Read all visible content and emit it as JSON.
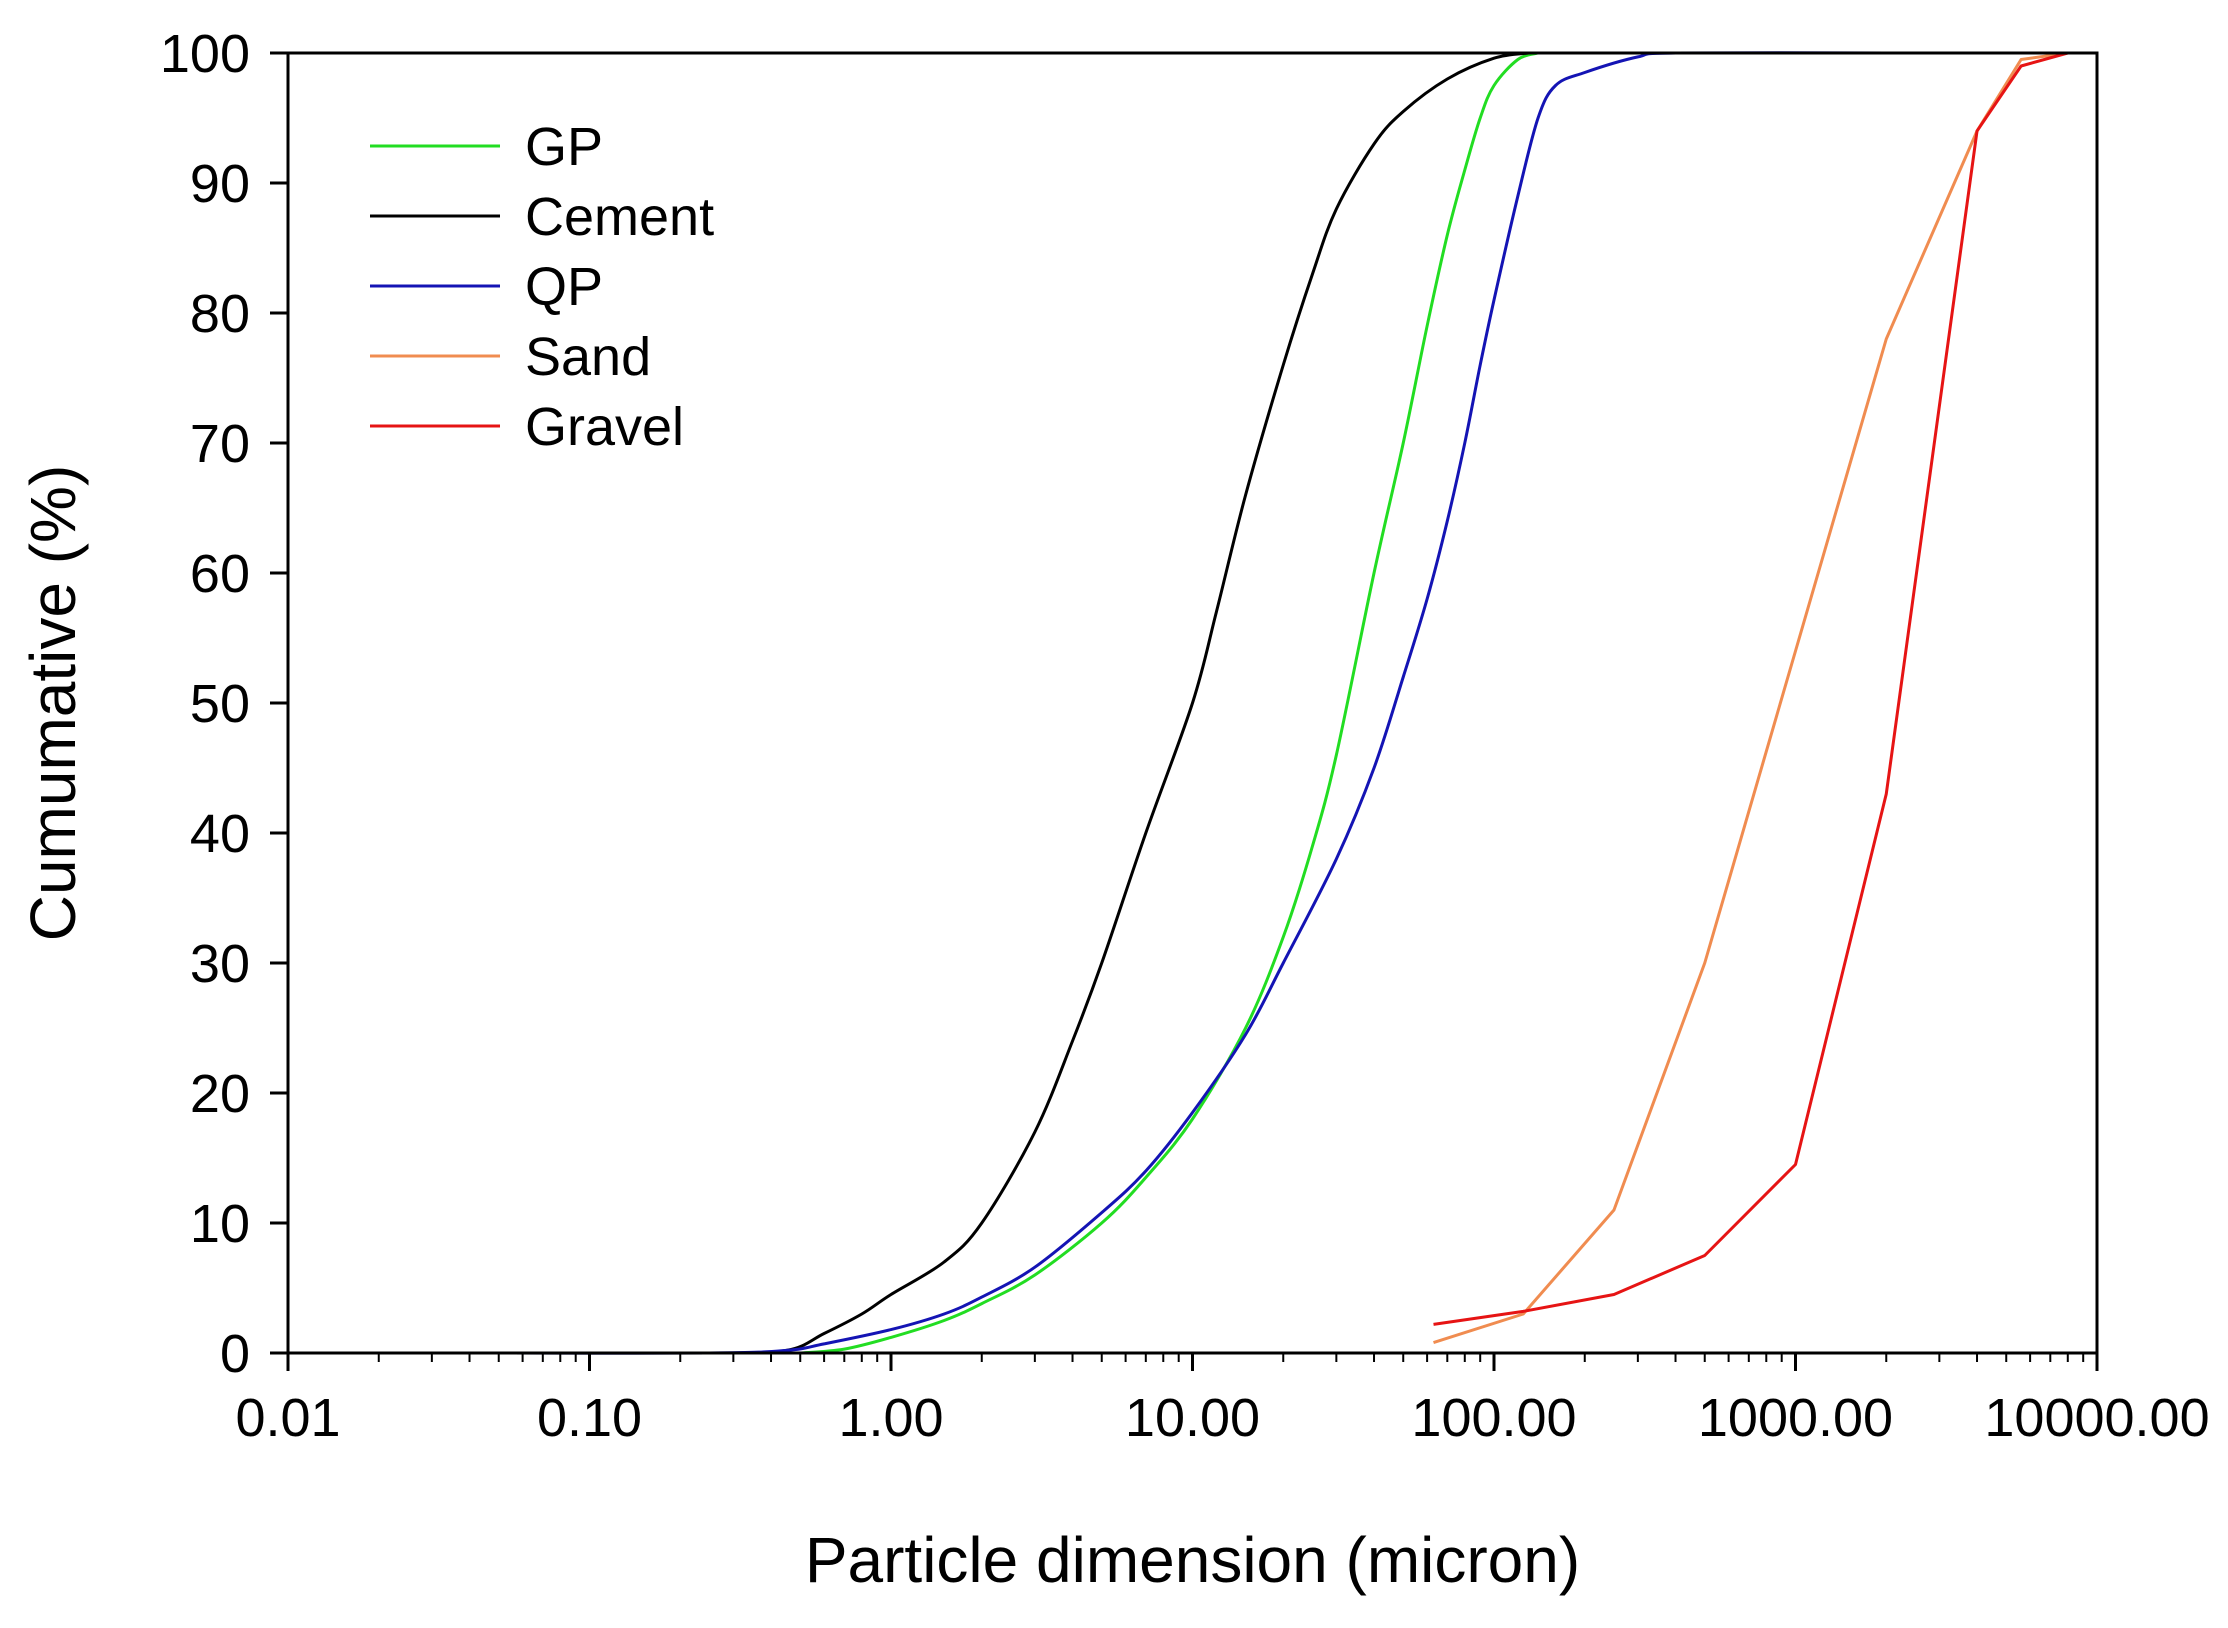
{
  "chart_data": {
    "type": "line",
    "title": "",
    "xlabel": "Particle dimension (micron)",
    "ylabel": "Cumumative (%)",
    "xscale": "log",
    "xlim": [
      0.01,
      10000
    ],
    "ylim": [
      0,
      100
    ],
    "grid": false,
    "legend_position": "top-left",
    "x_ticks": [
      0.01,
      0.1,
      1,
      10,
      100,
      1000,
      10000
    ],
    "x_tick_labels": [
      "0.01",
      "0.10",
      "1.00",
      "10.00",
      "100.00",
      "1000.00",
      "10000.00"
    ],
    "y_ticks": [
      0,
      10,
      20,
      30,
      40,
      50,
      60,
      70,
      80,
      90,
      100
    ],
    "y_tick_labels": [
      "0",
      "10",
      "20",
      "30",
      "40",
      "50",
      "60",
      "70",
      "80",
      "90",
      "100"
    ],
    "series": [
      {
        "name": "GP",
        "color": "#22dd22",
        "points": [
          [
            0.5,
            0
          ],
          [
            0.7,
            0.3
          ],
          [
            1.0,
            1.2
          ],
          [
            1.5,
            2.5
          ],
          [
            2.0,
            3.8
          ],
          [
            3.0,
            6.0
          ],
          [
            5.0,
            10.0
          ],
          [
            7.0,
            13.5
          ],
          [
            10.0,
            18.0
          ],
          [
            15.0,
            25.0
          ],
          [
            20.0,
            32.0
          ],
          [
            25.0,
            39.0
          ],
          [
            30.0,
            46.0
          ],
          [
            40.0,
            60.0
          ],
          [
            50.0,
            70.0
          ],
          [
            60.0,
            79.0
          ],
          [
            70.0,
            86.0
          ],
          [
            80.0,
            91.0
          ],
          [
            90.0,
            95.0
          ],
          [
            100.0,
            97.5
          ],
          [
            120.0,
            99.5
          ],
          [
            140.0,
            100.0
          ]
        ]
      },
      {
        "name": "Cement",
        "color": "#000000",
        "points": [
          [
            0.04,
            0
          ],
          [
            0.25,
            0
          ],
          [
            0.45,
            0.2
          ],
          [
            0.6,
            1.5
          ],
          [
            0.8,
            3.0
          ],
          [
            1.0,
            4.5
          ],
          [
            1.5,
            7.0
          ],
          [
            2.0,
            10.0
          ],
          [
            3.0,
            17.0
          ],
          [
            4.0,
            24.0
          ],
          [
            5.0,
            30.0
          ],
          [
            7.0,
            40.0
          ],
          [
            10.0,
            50.0
          ],
          [
            12.0,
            57.0
          ],
          [
            15.0,
            66.0
          ],
          [
            20.0,
            76.0
          ],
          [
            25.0,
            83.0
          ],
          [
            30.0,
            88.0
          ],
          [
            40.0,
            93.0
          ],
          [
            50.0,
            95.5
          ],
          [
            70.0,
            98.0
          ],
          [
            100.0,
            99.6
          ],
          [
            130.0,
            100.0
          ]
        ]
      },
      {
        "name": "QP",
        "color": "#1414b4",
        "points": [
          [
            0.04,
            0
          ],
          [
            0.25,
            0
          ],
          [
            0.45,
            0.2
          ],
          [
            0.6,
            0.7
          ],
          [
            1.0,
            1.8
          ],
          [
            1.5,
            3.0
          ],
          [
            2.0,
            4.3
          ],
          [
            3.0,
            6.6
          ],
          [
            5.0,
            10.8
          ],
          [
            7.0,
            14.0
          ],
          [
            10.0,
            18.5
          ],
          [
            15.0,
            24.5
          ],
          [
            20.0,
            30.0
          ],
          [
            30.0,
            38.0
          ],
          [
            40.0,
            45.0
          ],
          [
            50.0,
            52.0
          ],
          [
            60.0,
            58.0
          ],
          [
            70.0,
            64.0
          ],
          [
            80.0,
            70.0
          ],
          [
            90.0,
            76.0
          ],
          [
            100.0,
            81.0
          ],
          [
            120.0,
            89.0
          ],
          [
            140.0,
            95.0
          ],
          [
            160.0,
            97.5
          ],
          [
            200.0,
            98.5
          ],
          [
            300.0,
            99.7
          ],
          [
            400.0,
            100.0
          ],
          [
            2000.0,
            100.0
          ]
        ]
      },
      {
        "name": "Sand",
        "color": "#f08c50",
        "points": [
          [
            63,
            0.8
          ],
          [
            125,
            3.0
          ],
          [
            250,
            11.0
          ],
          [
            500,
            30.0
          ],
          [
            1000,
            54.0
          ],
          [
            2000,
            78.0
          ],
          [
            4000,
            94.0
          ],
          [
            5600,
            99.5
          ],
          [
            8000,
            100.0
          ]
        ]
      },
      {
        "name": "Gravel",
        "color": "#e61414",
        "points": [
          [
            63,
            2.2
          ],
          [
            125,
            3.2
          ],
          [
            250,
            4.5
          ],
          [
            500,
            7.5
          ],
          [
            1000,
            14.5
          ],
          [
            2000,
            43.0
          ],
          [
            4000,
            94.0
          ],
          [
            5600,
            99.0
          ],
          [
            8000,
            100.0
          ],
          [
            10000,
            100.0
          ]
        ]
      }
    ]
  }
}
